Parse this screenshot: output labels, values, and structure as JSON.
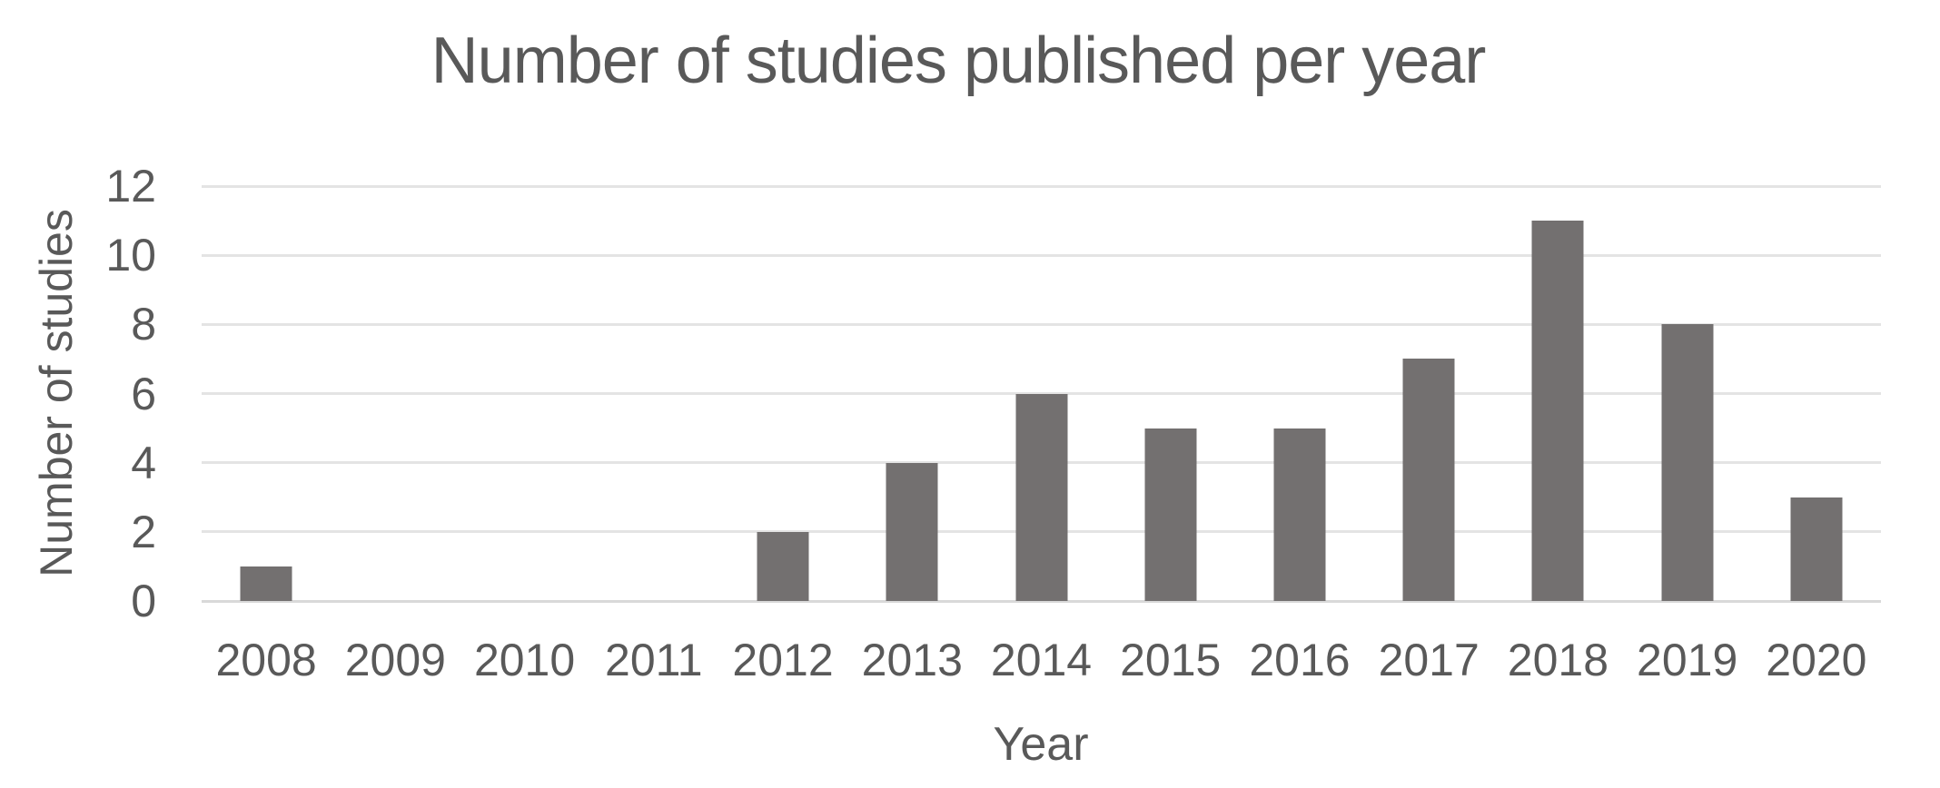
{
  "chart_data": {
    "type": "bar",
    "title": "Number of studies published per year",
    "xlabel": "Year",
    "ylabel": "Number of studies",
    "categories": [
      "2008",
      "2009",
      "2010",
      "2011",
      "2012",
      "2013",
      "2014",
      "2015",
      "2016",
      "2017",
      "2018",
      "2019",
      "2020"
    ],
    "values": [
      1,
      0,
      0,
      0,
      2,
      4,
      6,
      5,
      5,
      7,
      11,
      8,
      3
    ],
    "ylim": [
      0,
      12
    ],
    "ytick_step": 2,
    "ytick_labels": [
      "0",
      "2",
      "4",
      "6",
      "8",
      "10",
      "12"
    ],
    "grid": "horizontal-only",
    "legend_position": "none",
    "colors": {
      "bar_fill": "#737070",
      "text": "#595959",
      "gridline": "#e4e4e4",
      "axis_line": "#d9d9d9",
      "background": "#ffffff"
    }
  }
}
